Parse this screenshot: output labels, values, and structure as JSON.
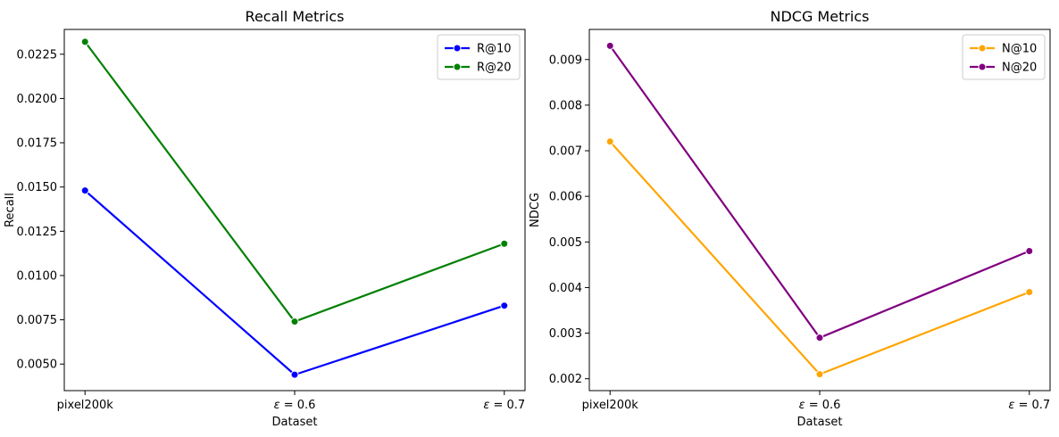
{
  "chart_data": [
    {
      "type": "line",
      "title": "Recall Metrics",
      "xlabel": "Dataset",
      "ylabel": "Recall",
      "categories": [
        "pixel200k",
        "ε = 0.6",
        "ε = 0.7"
      ],
      "ylim": [
        0.0035,
        0.0239
      ],
      "yticks": [
        0.005,
        0.0075,
        0.01,
        0.0125,
        0.015,
        0.0175,
        0.02,
        0.0225
      ],
      "ytick_labels": [
        "0.0050",
        "0.0075",
        "0.0100",
        "0.0125",
        "0.0150",
        "0.0175",
        "0.0200",
        "0.0225"
      ],
      "legend_position": "upper-right",
      "series": [
        {
          "name": "R@10",
          "color": "#0000ff",
          "values": [
            0.0148,
            0.0044,
            0.0083
          ]
        },
        {
          "name": "R@20",
          "color": "#008000",
          "values": [
            0.0232,
            0.0074,
            0.0118
          ]
        }
      ]
    },
    {
      "type": "line",
      "title": "NDCG Metrics",
      "xlabel": "Dataset",
      "ylabel": "NDCG",
      "categories": [
        "pixel200k",
        "ε = 0.6",
        "ε = 0.7"
      ],
      "ylim": [
        0.00174,
        0.00966
      ],
      "yticks": [
        0.002,
        0.003,
        0.004,
        0.005,
        0.006,
        0.007,
        0.008,
        0.009
      ],
      "ytick_labels": [
        "0.002",
        "0.003",
        "0.004",
        "0.005",
        "0.006",
        "0.007",
        "0.008",
        "0.009"
      ],
      "legend_position": "upper-right",
      "series": [
        {
          "name": "N@10",
          "color": "#ffa500",
          "values": [
            0.0072,
            0.0021,
            0.0039
          ]
        },
        {
          "name": "N@20",
          "color": "#800080",
          "values": [
            0.0093,
            0.0029,
            0.0048
          ]
        }
      ]
    }
  ]
}
